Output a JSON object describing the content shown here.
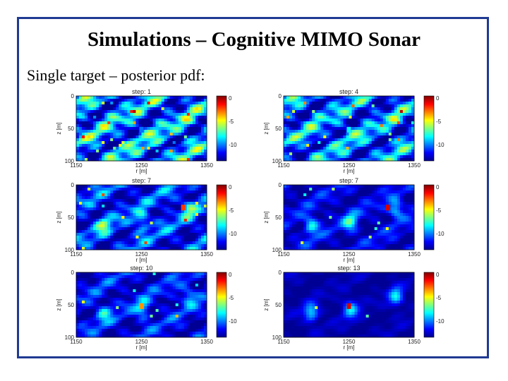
{
  "slide": {
    "title": "Simulations – Cognitive MIMO Sonar",
    "subtitle": "Single target – posterior pdf:"
  },
  "panels": [
    {
      "step_title": "step: 1",
      "col": 0,
      "row": 0,
      "intensity": 0.95,
      "target_strength": 0.15
    },
    {
      "step_title": "step: 4",
      "col": 1,
      "row": 0,
      "intensity": 0.85,
      "target_strength": 0.3
    },
    {
      "step_title": "step: 7",
      "col": 0,
      "row": 1,
      "intensity": 0.6,
      "target_strength": 0.8
    },
    {
      "step_title": "step: 7",
      "col": 1,
      "row": 1,
      "intensity": 0.35,
      "target_strength": 0.9
    },
    {
      "step_title": "step: 10",
      "col": 0,
      "row": 2,
      "intensity": 0.45,
      "target_strength": 0.7
    },
    {
      "step_title": "step: 13",
      "col": 1,
      "row": 2,
      "intensity": 0.15,
      "target_strength": 0.9
    }
  ],
  "axes": {
    "ylabel": "z [m]",
    "xlabel": "r [m]",
    "xticks": [
      "1150",
      "1250",
      "1350"
    ],
    "yticks": [
      "0",
      "50",
      "100"
    ]
  },
  "colorbar": {
    "ticks": [
      "0",
      "-5",
      "-10"
    ]
  },
  "colors": {
    "frame": "#1f3a93"
  }
}
